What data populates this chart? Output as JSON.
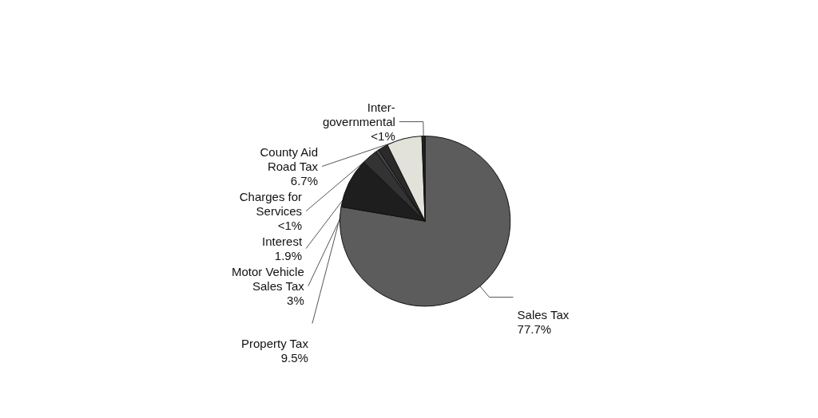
{
  "chart_data": {
    "type": "pie",
    "categories": [
      "Sales Tax",
      "Property Tax",
      "Motor Vehicle\nSales Tax",
      "Charges for\nServices",
      "Interest",
      "County Aid\nRoad Tax",
      "Inter-\ngovernmental"
    ],
    "values": [
      77.7,
      9.5,
      3,
      0.6,
      1.9,
      6.7,
      0.6
    ],
    "value_labels": [
      "77.7%",
      "9.5%",
      "3%",
      "<1%",
      "1.9%",
      "6.7%",
      "<1%"
    ],
    "colors": [
      "#5c5c5c",
      "#1e1e1e",
      "#333333",
      "#454545",
      "#2a2a2a",
      "#e2e2da",
      "#222222"
    ]
  }
}
